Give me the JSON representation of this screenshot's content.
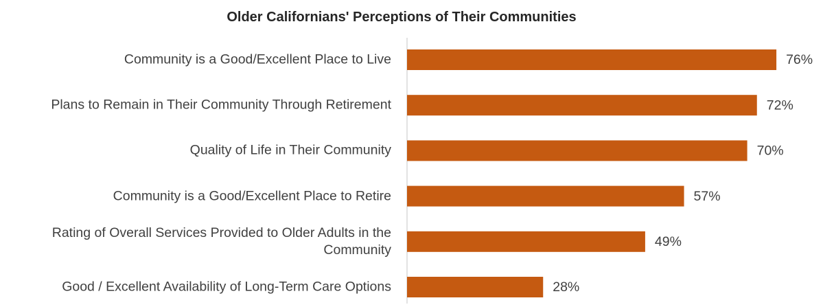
{
  "chart_data": {
    "type": "bar",
    "orientation": "horizontal",
    "title": "Older Californians' Perceptions of Their Communities",
    "categories": [
      "Community is a Good/Excellent Place to Live",
      "Plans to Remain in Their Community Through Retirement",
      "Quality of Life in Their Community",
      "Community is a Good/Excellent Place to Retire",
      "Rating of Overall Services Provided to Older Adults in the Community",
      "Good / Excellent Availability of Long-Term Care Options"
    ],
    "values": [
      76,
      72,
      70,
      57,
      49,
      28
    ],
    "value_labels": [
      "76%",
      "72%",
      "70%",
      "57%",
      "49%",
      "28%"
    ],
    "color": "#c55a11"
  }
}
